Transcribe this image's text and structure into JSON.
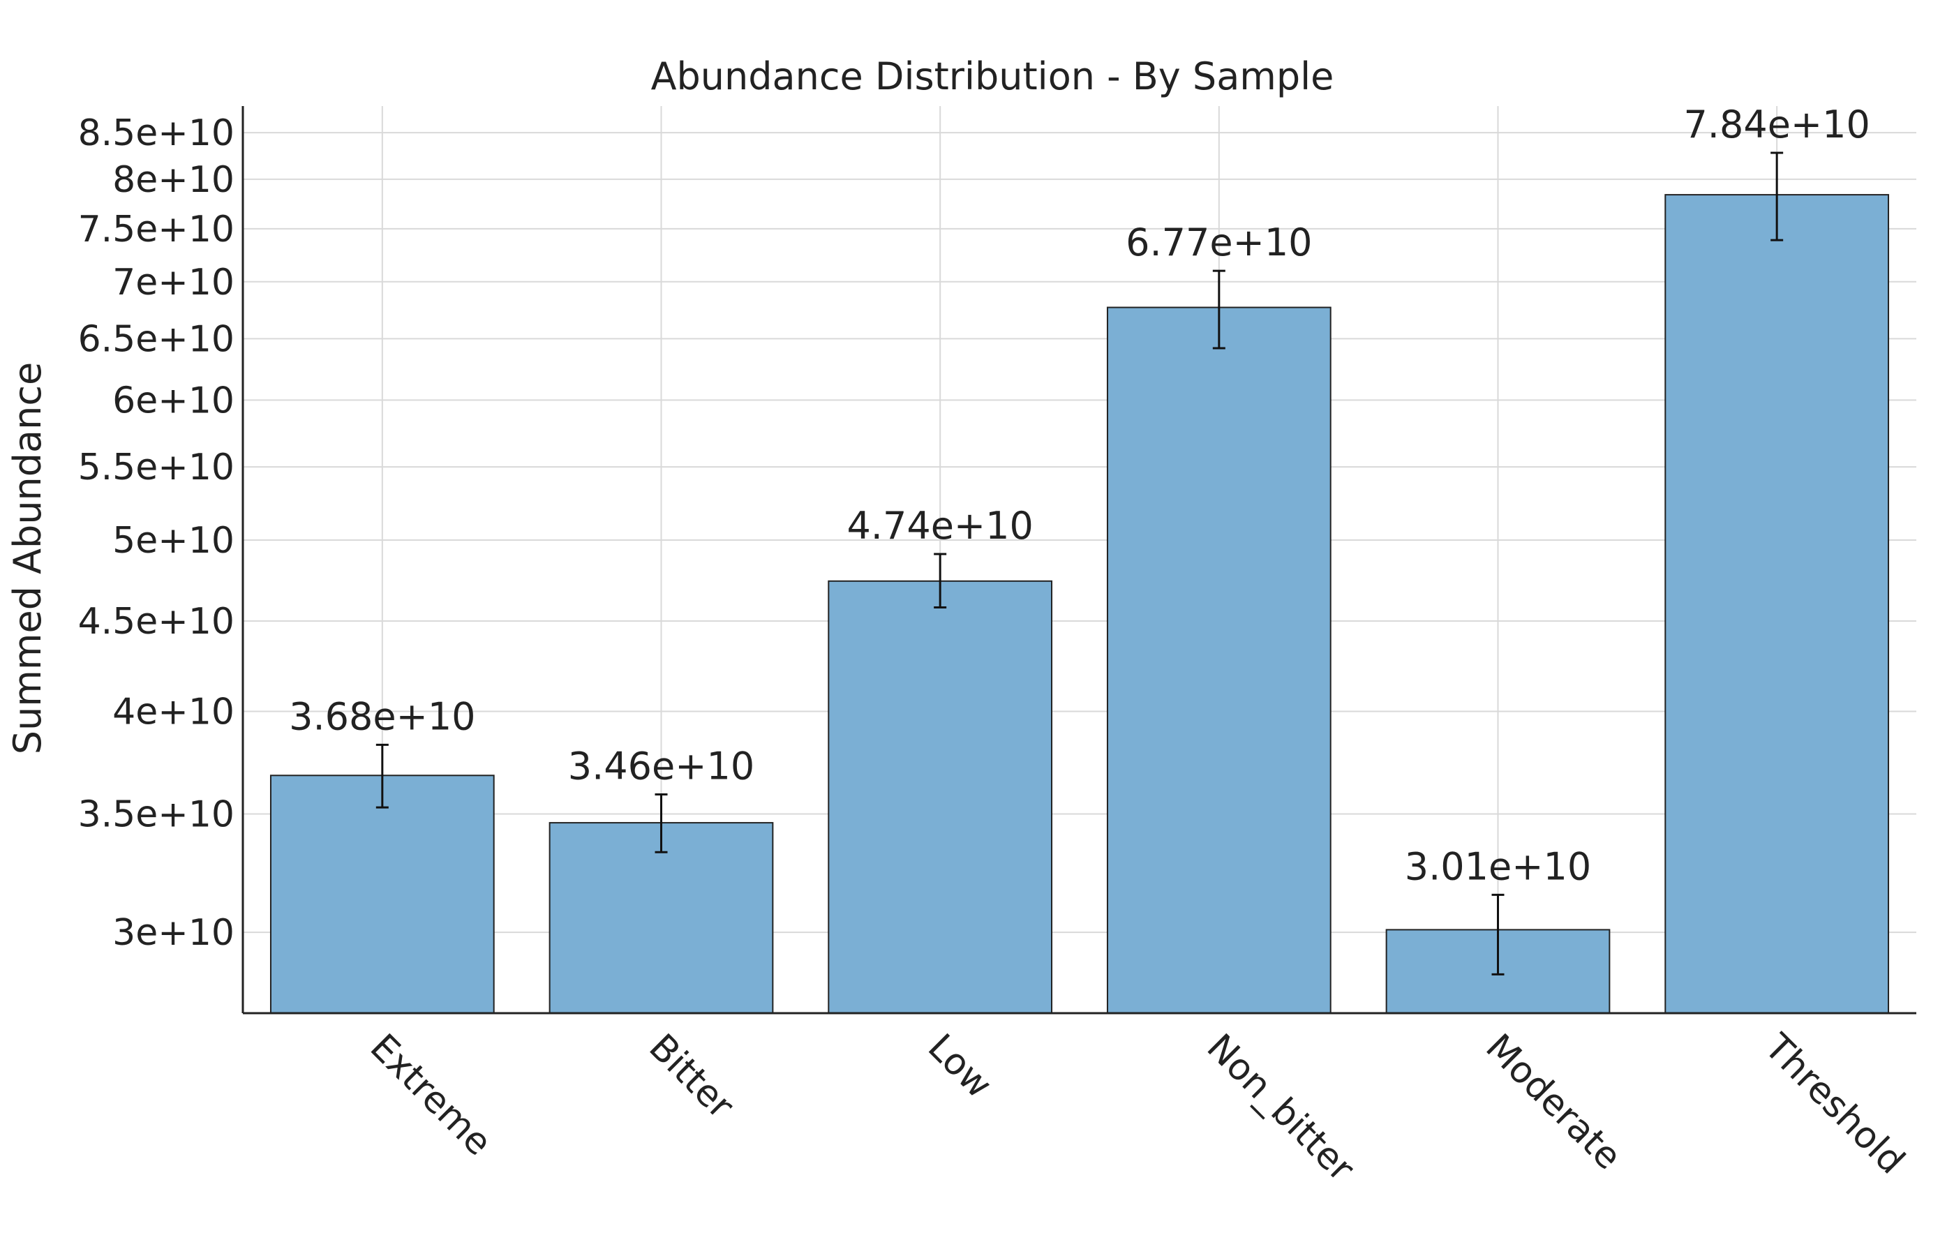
{
  "chart_data": {
    "type": "bar",
    "title": "Abundance Distribution - By Sample",
    "xlabel": "",
    "ylabel": "Summed Abundance",
    "yscale": "log",
    "ylim": [
      27000000000,
      88000000000
    ],
    "yticks": [
      30000000000,
      35000000000,
      40000000000,
      45000000000,
      50000000000,
      55000000000,
      60000000000,
      65000000000,
      70000000000,
      75000000000,
      80000000000,
      85000000000
    ],
    "ytick_labels": [
      "3e+10",
      "3.5e+10",
      "4e+10",
      "4.5e+10",
      "5e+10",
      "5.5e+10",
      "6e+10",
      "6.5e+10",
      "7e+10",
      "7.5e+10",
      "8e+10",
      "8.5e+10"
    ],
    "categories": [
      "Extreme",
      "Bitter",
      "Low",
      "Non_bitter",
      "Moderate",
      "Threshold"
    ],
    "values": [
      36800000000,
      34600000000,
      47400000000,
      67700000000,
      30100000000,
      78400000000
    ],
    "value_labels": [
      "3.68e+10",
      "3.46e+10",
      "4.74e+10",
      "6.77e+10",
      "3.01e+10",
      "7.84e+10"
    ],
    "error_low": [
      35300000000,
      33300000000,
      45800000000,
      64200000000,
      28400000000,
      73900000000
    ],
    "error_high": [
      38300000000,
      35900000000,
      49100000000,
      71000000000,
      31500000000,
      82800000000
    ],
    "grid": true,
    "bar_color": "#7bafd4",
    "bar_edge_color": "#222222"
  }
}
